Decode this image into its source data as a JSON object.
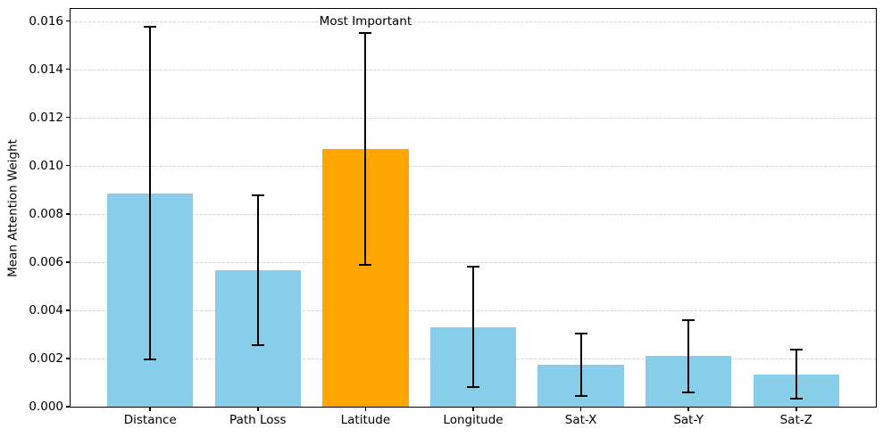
{
  "chart_data": {
    "type": "bar",
    "categories": [
      "Distance",
      "Path Loss",
      "Latitude",
      "Longitude",
      "Sat-X",
      "Sat-Y",
      "Sat-Z"
    ],
    "values": [
      0.00885,
      0.00565,
      0.0107,
      0.0033,
      0.00175,
      0.0021,
      0.00135
    ],
    "errors": [
      0.0069,
      0.0031,
      0.0048,
      0.0025,
      0.0013,
      0.0015,
      0.001
    ],
    "bar_colors": [
      "#87CEEB",
      "#87CEEB",
      "#FFA500",
      "#87CEEB",
      "#87CEEB",
      "#87CEEB",
      "#87CEEB"
    ],
    "highlight_color": "#FFA500",
    "default_bar_color": "#87CEEB",
    "error_bar_color": "#000000",
    "title": "",
    "xlabel": "",
    "ylabel": "Mean Attention Weight",
    "ylim": [
      0,
      0.0165
    ],
    "ytick_values": [
      0,
      0.002,
      0.004,
      0.006,
      0.008,
      0.01,
      0.012,
      0.014,
      0.016
    ],
    "ytick_labels": [
      "0.000",
      "0.002",
      "0.004",
      "0.006",
      "0.008",
      "0.010",
      "0.012",
      "0.014",
      "0.016"
    ],
    "grid": "horizontal-dashed",
    "legend": "none",
    "annotation": {
      "text": "Most Important",
      "category_index": 2
    }
  }
}
